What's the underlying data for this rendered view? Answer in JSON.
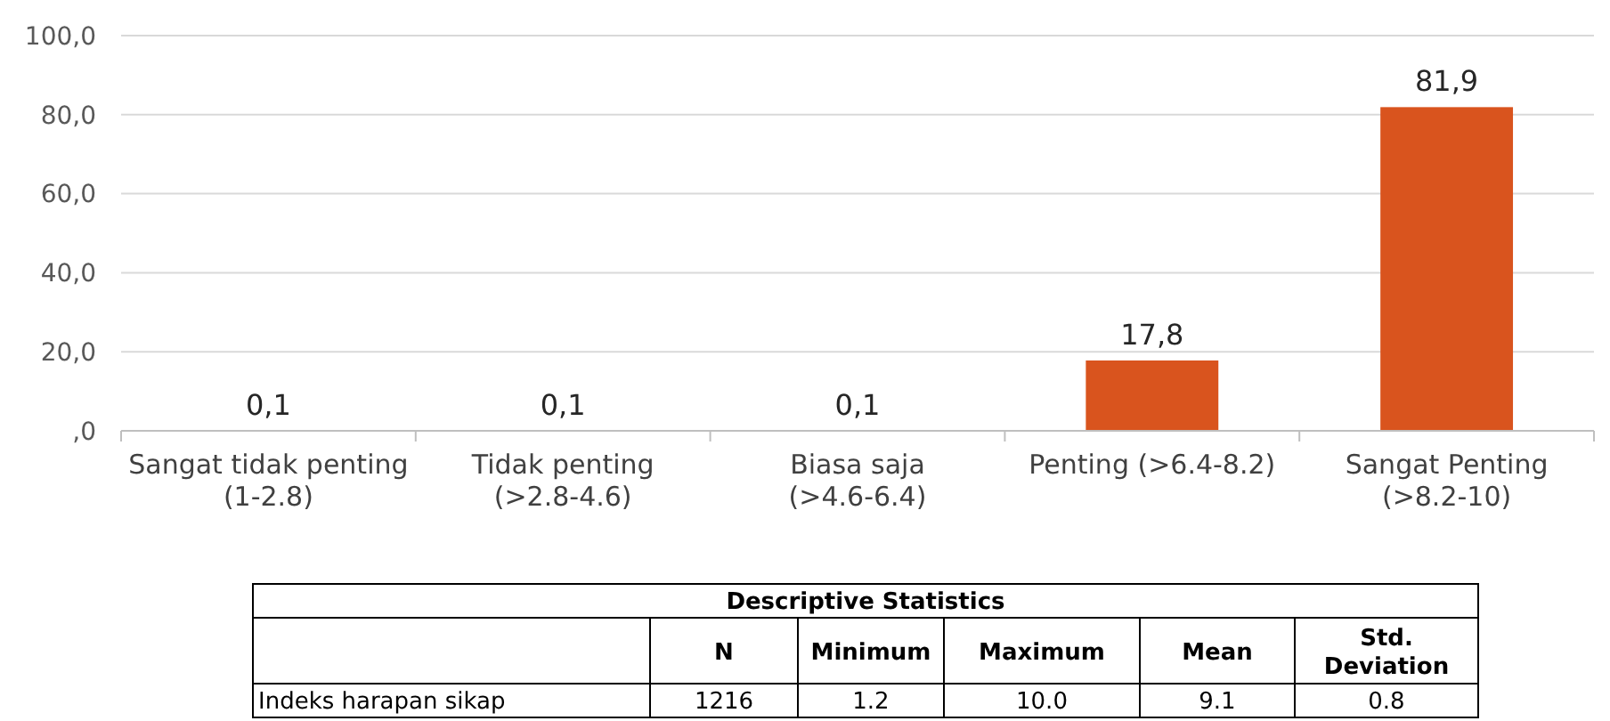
{
  "chart_data": [
    {
      "type": "bar",
      "categories": [
        "Sangat tidak penting (1-2.8)",
        "Tidak penting (>2.8-4.6)",
        "Biasa saja (>4.6-6.4)",
        "Penting (>6.4-8.2)",
        "Sangat Penting (>8.2-10)"
      ],
      "values": [
        0.1,
        0.1,
        0.1,
        17.8,
        81.9
      ],
      "color": "#d9541e",
      "value_labels": [
        "0,1",
        "0,1",
        "0,1",
        "17,8",
        "81,9"
      ],
      "ylim": [
        0,
        100
      ],
      "yticks": [
        {
          "value": 0,
          "label": ",0"
        },
        {
          "value": 20,
          "label": "20,0"
        },
        {
          "value": 40,
          "label": "40,0"
        },
        {
          "value": 60,
          "label": "60,0"
        },
        {
          "value": 80,
          "label": "80,0"
        },
        {
          "value": 100,
          "label": "100,0"
        }
      ],
      "grid": "y"
    },
    {
      "type": "other",
      "title": "Descriptive Statistics",
      "categories": [
        null,
        "N",
        "Minimum",
        "Maximum",
        "Mean",
        "Std. Deviation"
      ],
      "annotations": [
        "Indeks harapan sikap",
        "1216",
        "1.2",
        "10.0",
        "9.1",
        "0.8"
      ]
    }
  ]
}
